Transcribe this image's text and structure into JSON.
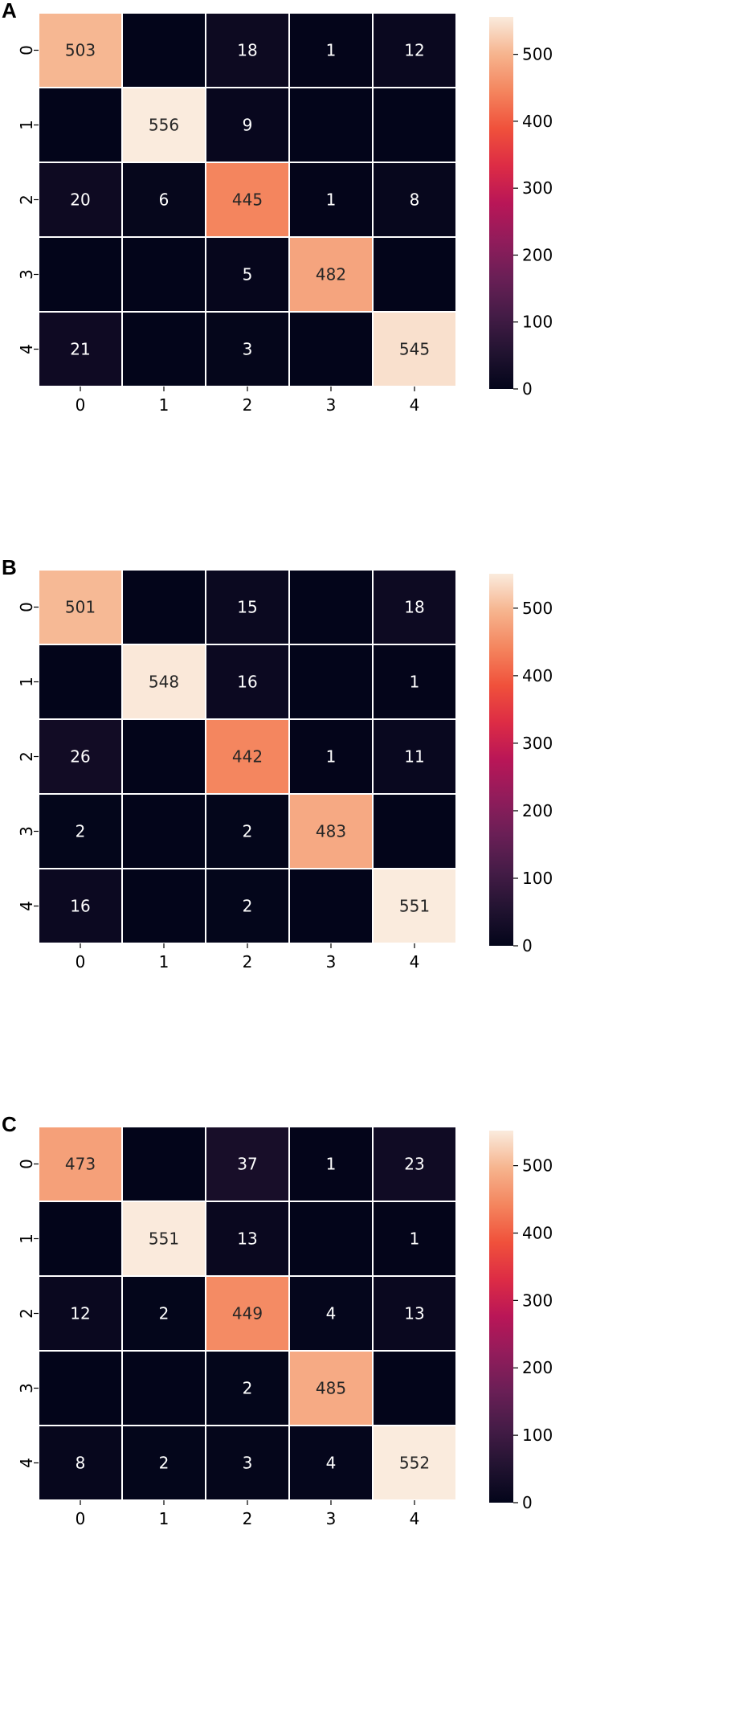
{
  "chart_data": [
    {
      "type": "heatmap",
      "panel": "A",
      "x_categories": [
        "0",
        "1",
        "2",
        "3",
        "4"
      ],
      "y_categories": [
        "0",
        "1",
        "2",
        "3",
        "4"
      ],
      "matrix": [
        [
          503,
          0,
          18,
          1,
          12
        ],
        [
          0,
          556,
          9,
          0,
          0
        ],
        [
          20,
          6,
          445,
          1,
          8
        ],
        [
          0,
          0,
          5,
          482,
          0
        ],
        [
          21,
          0,
          3,
          0,
          545
        ]
      ],
      "zero_cells_labeled": false,
      "colorbar": {
        "range": [
          0,
          556
        ],
        "ticks": [
          0,
          100,
          200,
          300,
          400,
          500
        ],
        "colormap": "rocket"
      },
      "title": "",
      "xlabel": "",
      "ylabel": ""
    },
    {
      "type": "heatmap",
      "panel": "B",
      "x_categories": [
        "0",
        "1",
        "2",
        "3",
        "4"
      ],
      "y_categories": [
        "0",
        "1",
        "2",
        "3",
        "4"
      ],
      "matrix": [
        [
          501,
          0,
          15,
          0,
          18
        ],
        [
          0,
          548,
          16,
          0,
          1
        ],
        [
          26,
          0,
          442,
          1,
          11
        ],
        [
          2,
          0,
          2,
          483,
          0
        ],
        [
          16,
          0,
          2,
          0,
          551
        ]
      ],
      "zero_cells_labeled": false,
      "colorbar": {
        "range": [
          0,
          551
        ],
        "ticks": [
          0,
          100,
          200,
          300,
          400,
          500
        ],
        "colormap": "rocket"
      },
      "title": "",
      "xlabel": "",
      "ylabel": ""
    },
    {
      "type": "heatmap",
      "panel": "C",
      "x_categories": [
        "0",
        "1",
        "2",
        "3",
        "4"
      ],
      "y_categories": [
        "0",
        "1",
        "2",
        "3",
        "4"
      ],
      "matrix": [
        [
          473,
          0,
          37,
          1,
          23
        ],
        [
          0,
          551,
          13,
          0,
          1
        ],
        [
          12,
          2,
          449,
          4,
          13
        ],
        [
          0,
          0,
          2,
          485,
          0
        ],
        [
          8,
          2,
          3,
          4,
          552
        ]
      ],
      "zero_cells_labeled": false,
      "colorbar": {
        "range": [
          0,
          552
        ],
        "ticks": [
          0,
          100,
          200,
          300,
          400,
          500
        ],
        "colormap": "rocket"
      },
      "title": "",
      "xlabel": "",
      "ylabel": ""
    }
  ]
}
